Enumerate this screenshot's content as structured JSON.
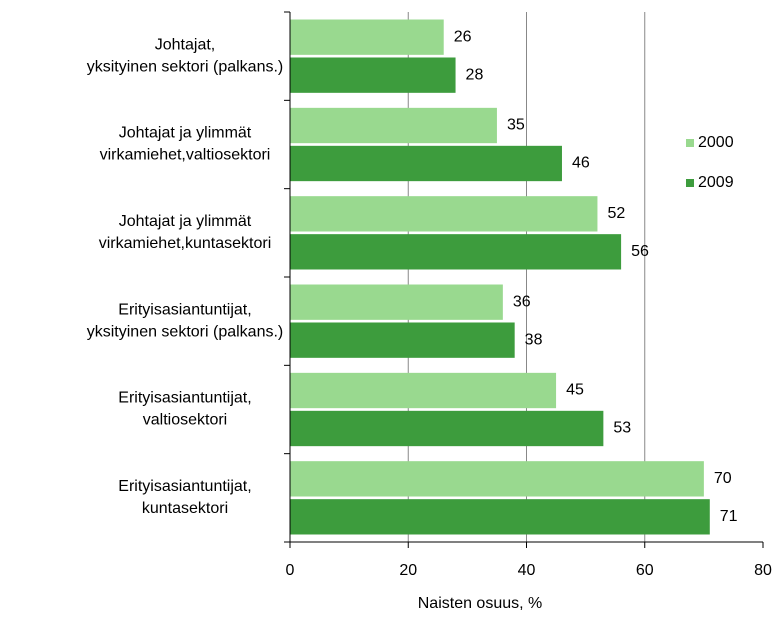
{
  "chart_data": {
    "type": "bar",
    "orientation": "horizontal",
    "categories": [
      [
        "Johtajat,",
        "yksityinen sektori (palkans.)"
      ],
      [
        "Johtajat ja ylimmät",
        "virkamiehet,valtiosektori"
      ],
      [
        "Johtajat ja ylimmät",
        "virkamiehet,kuntasektori"
      ],
      [
        "Erityisasiantuntijat,",
        "yksityinen sektori (palkans.)"
      ],
      [
        "Erityisasiantuntijat,",
        "valtiosektori"
      ],
      [
        "Erityisasiantuntijat,",
        "kuntasektori"
      ]
    ],
    "series": [
      {
        "name": "2000",
        "color": "#99d98f",
        "values": [
          26,
          35,
          52,
          36,
          45,
          70
        ]
      },
      {
        "name": "2009",
        "color": "#3d9c3d",
        "values": [
          28,
          46,
          56,
          38,
          53,
          71
        ]
      }
    ],
    "xlabel": "Naisten osuus, %",
    "xlim": [
      0,
      80
    ],
    "xticks": [
      0,
      20,
      40,
      60,
      80
    ],
    "grid": true,
    "legend": "right"
  }
}
